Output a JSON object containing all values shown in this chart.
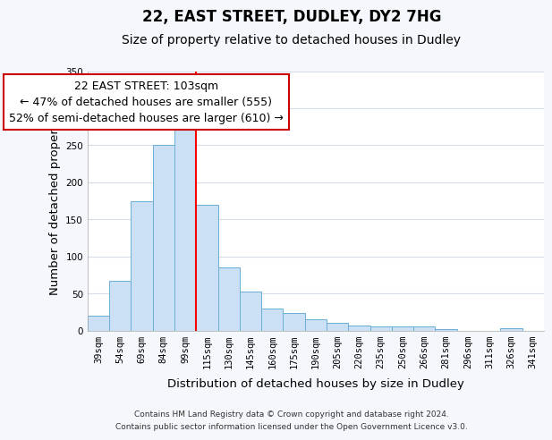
{
  "title": "22, EAST STREET, DUDLEY, DY2 7HG",
  "subtitle": "Size of property relative to detached houses in Dudley",
  "xlabel": "Distribution of detached houses by size in Dudley",
  "ylabel": "Number of detached properties",
  "footer1": "Contains HM Land Registry data © Crown copyright and database right 2024.",
  "footer2": "Contains public sector information licensed under the Open Government Licence v3.0.",
  "bar_color": "#cce0f5",
  "bar_edge_color": "#6aaed6",
  "annotation_text": "22 EAST STREET: 103sqm\n← 47% of detached houses are smaller (555)\n52% of semi-detached houses are larger (610) →",
  "annotation_ha": "center",
  "vline_color": "red",
  "vline_index": 4.5,
  "categories": [
    "39sqm",
    "54sqm",
    "69sqm",
    "84sqm",
    "99sqm",
    "115sqm",
    "130sqm",
    "145sqm",
    "160sqm",
    "175sqm",
    "190sqm",
    "205sqm",
    "220sqm",
    "235sqm",
    "250sqm",
    "266sqm",
    "281sqm",
    "296sqm",
    "311sqm",
    "326sqm",
    "341sqm"
  ],
  "values": [
    20,
    67,
    175,
    250,
    283,
    170,
    85,
    53,
    30,
    23,
    15,
    10,
    7,
    5,
    5,
    5,
    2,
    0,
    0,
    3,
    0
  ],
  "ylim": [
    0,
    350
  ],
  "yticks": [
    0,
    50,
    100,
    150,
    200,
    250,
    300,
    350
  ],
  "background_color": "#f4f7fb",
  "plot_bg_color": "#ffffff",
  "grid_color": "#d5dce8",
  "title_fontsize": 12,
  "subtitle_fontsize": 10,
  "tick_fontsize": 7.5,
  "label_fontsize": 9.5,
  "footer_fontsize": 6.5,
  "annotation_fontsize": 9,
  "annotation_box_color": "#ffffff",
  "annotation_box_edge": "#cc0000"
}
